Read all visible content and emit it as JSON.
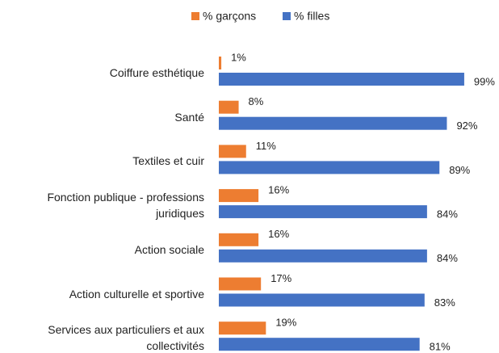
{
  "chart_data": {
    "type": "hbar",
    "categories": [
      "Coiffure esthétique",
      "Santé",
      "Textiles et cuir",
      "Fonction publique - professions juridiques",
      "Action sociale",
      "Action culturelle et sportive",
      "Services aux particuliers et aux collectivités"
    ],
    "series": [
      {
        "name": "% garçons",
        "color": "#ed7d31",
        "values": [
          1,
          8,
          11,
          16,
          16,
          17,
          19
        ],
        "value_labels": [
          "1%",
          "8%",
          "11%",
          "16%",
          "16%",
          "17%",
          "19%"
        ]
      },
      {
        "name": "% filles",
        "color": "#4472c4",
        "values": [
          99,
          92,
          89,
          84,
          84,
          83,
          81
        ],
        "value_labels": [
          "99%",
          "92%",
          "89%",
          "84%",
          "84%",
          "83%",
          "81%"
        ]
      }
    ],
    "xlim": [
      0,
      100
    ]
  }
}
